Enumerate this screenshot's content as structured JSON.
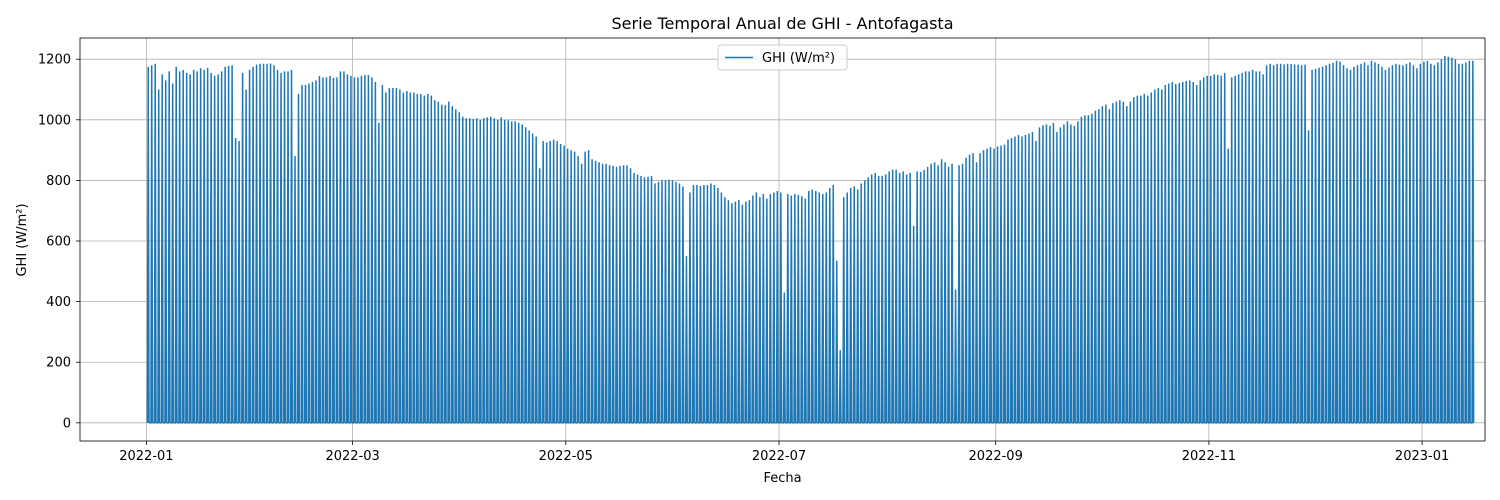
{
  "chart_data": {
    "type": "line",
    "title": "Serie Temporal Anual de GHI - Antofagasta",
    "xlabel": "Fecha",
    "ylabel": "GHI (W/m²)",
    "grid": true,
    "legend_position": "upper center",
    "xlim": [
      "2021-12-13",
      "2023-01-19"
    ],
    "ylim": [
      -60,
      1270
    ],
    "x_ticks": [
      {
        "date": "2022-01-01",
        "label": "2022-01"
      },
      {
        "date": "2022-03-01",
        "label": "2022-03"
      },
      {
        "date": "2022-05-01",
        "label": "2022-05"
      },
      {
        "date": "2022-07-01",
        "label": "2022-07"
      },
      {
        "date": "2022-09-01",
        "label": "2022-09"
      },
      {
        "date": "2022-11-01",
        "label": "2022-11"
      },
      {
        "date": "2023-01-01",
        "label": "2023-01"
      }
    ],
    "y_ticks": [
      0,
      200,
      400,
      600,
      800,
      1000,
      1200
    ],
    "series": [
      {
        "name": "GHI (W/m²)",
        "color": "#1f77b4",
        "sampling": "daily peak (hourly series oscillates from 0 each night)",
        "start_date": "2022-01-01",
        "daily_peak_values": [
          1175,
          1180,
          1185,
          1100,
          1150,
          1130,
          1160,
          1120,
          1175,
          1160,
          1165,
          1155,
          1150,
          1165,
          1160,
          1170,
          1165,
          1172,
          1155,
          1145,
          1150,
          1160,
          1175,
          1178,
          1180,
          940,
          930,
          1155,
          1100,
          1165,
          1175,
          1182,
          1185,
          1185,
          1185,
          1186,
          1180,
          1165,
          1155,
          1160,
          1160,
          1165,
          880,
          1085,
          1115,
          1115,
          1120,
          1125,
          1130,
          1145,
          1140,
          1140,
          1145,
          1138,
          1140,
          1160,
          1160,
          1150,
          1145,
          1140,
          1140,
          1145,
          1148,
          1148,
          1140,
          1125,
          990,
          1115,
          1090,
          1105,
          1105,
          1105,
          1100,
          1090,
          1095,
          1090,
          1090,
          1085,
          1085,
          1080,
          1085,
          1080,
          1065,
          1060,
          1050,
          1048,
          1060,
          1045,
          1035,
          1025,
          1010,
          1005,
          1005,
          1003,
          1005,
          1000,
          1005,
          1008,
          1010,
          1005,
          1000,
          1008,
          1000,
          998,
          995,
          995,
          990,
          985,
          975,
          965,
          955,
          945,
          840,
          930,
          925,
          930,
          935,
          930,
          920,
          915,
          905,
          900,
          895,
          880,
          855,
          895,
          900,
          870,
          865,
          860,
          855,
          855,
          850,
          848,
          845,
          848,
          850,
          850,
          840,
          825,
          820,
          815,
          810,
          812,
          815,
          790,
          795,
          800,
          800,
          802,
          800,
          795,
          790,
          780,
          550,
          760,
          785,
          785,
          782,
          785,
          785,
          790,
          785,
          775,
          760,
          745,
          735,
          725,
          730,
          735,
          720,
          730,
          735,
          750,
          760,
          745,
          755,
          740,
          755,
          760,
          765,
          760,
          430,
          755,
          750,
          755,
          752,
          748,
          740,
          765,
          770,
          765,
          760,
          755,
          760,
          775,
          785,
          535,
          240,
          745,
          760,
          775,
          780,
          770,
          790,
          800,
          810,
          820,
          825,
          815,
          815,
          820,
          830,
          835,
          835,
          825,
          830,
          820,
          825,
          650,
          830,
          828,
          835,
          845,
          855,
          860,
          850,
          870,
          860,
          845,
          855,
          440,
          850,
          855,
          875,
          885,
          890,
          860,
          890,
          900,
          905,
          910,
          905,
          912,
          915,
          918,
          935,
          940,
          945,
          950,
          945,
          950,
          955,
          960,
          930,
          975,
          982,
          985,
          980,
          990,
          960,
          975,
          985,
          995,
          985,
          980,
          995,
          1010,
          1015,
          1015,
          1020,
          1030,
          1035,
          1045,
          1050,
          1035,
          1055,
          1060,
          1065,
          1060,
          1045,
          1060,
          1075,
          1080,
          1080,
          1085,
          1080,
          1090,
          1100,
          1105,
          1100,
          1115,
          1120,
          1125,
          1118,
          1122,
          1125,
          1128,
          1130,
          1125,
          1115,
          1130,
          1140,
          1145,
          1145,
          1150,
          1148,
          1145,
          1155,
          905,
          1140,
          1145,
          1150,
          1155,
          1160,
          1160,
          1165,
          1160,
          1160,
          1150,
          1180,
          1185,
          1180,
          1185,
          1185,
          1183,
          1185,
          1184,
          1183,
          1182,
          1180,
          1182,
          965,
          1165,
          1168,
          1172,
          1175,
          1180,
          1185,
          1188,
          1195,
          1192,
          1180,
          1170,
          1165,
          1175,
          1180,
          1185,
          1190,
          1180,
          1195,
          1190,
          1185,
          1175,
          1165,
          1172,
          1180,
          1185,
          1182,
          1180,
          1185,
          1190,
          1180,
          1170,
          1185,
          1192,
          1195,
          1185,
          1180,
          1190,
          1200,
          1210,
          1208,
          1205,
          1200,
          1185,
          1185,
          1190,
          1195,
          1195
        ]
      }
    ]
  }
}
